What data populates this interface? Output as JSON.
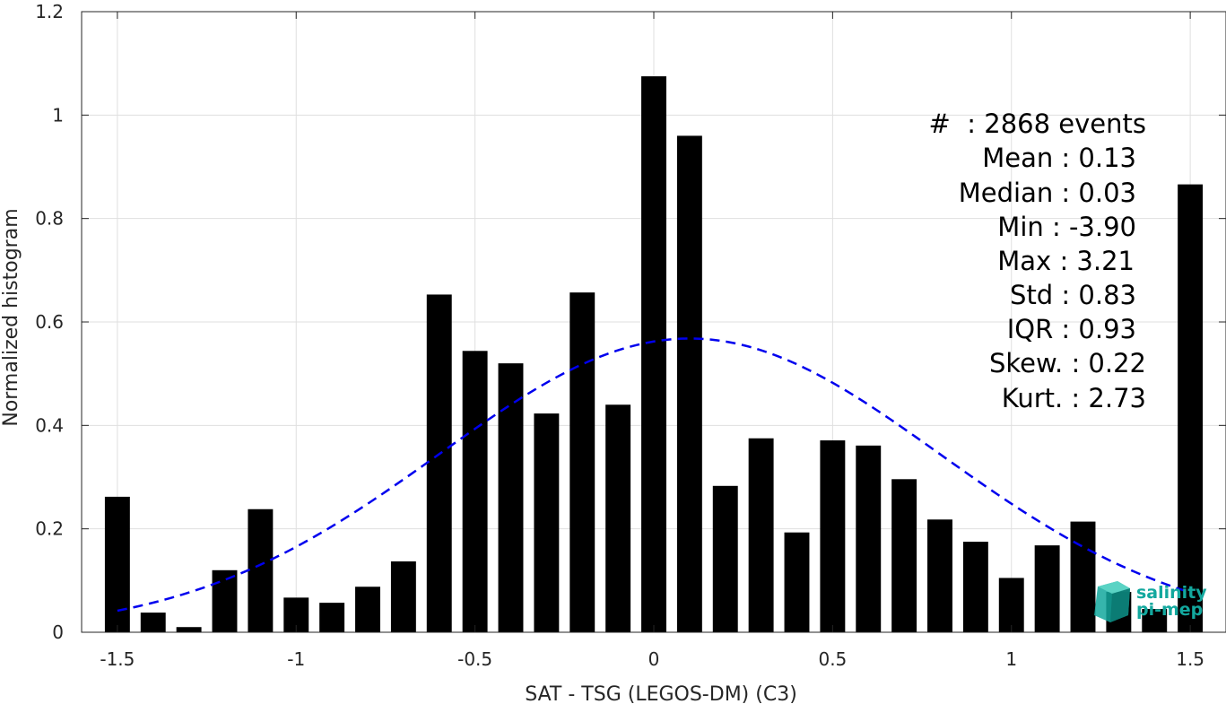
{
  "chart_data": {
    "type": "bar",
    "xlabel": "SAT - TSG (LEGOS-DM) (C3)",
    "ylabel": "Normalized histogram",
    "xlim": [
      -1.6,
      1.6
    ],
    "ylim": [
      0,
      1.2
    ],
    "grid": true,
    "x_ticks": [
      -1.5,
      -1,
      -0.5,
      0,
      0.5,
      1,
      1.5
    ],
    "x_tick_labels": [
      "-1.5",
      "-1",
      "-0.5",
      "0",
      "0.5",
      "1",
      "1.5"
    ],
    "y_ticks": [
      0,
      0.2,
      0.4,
      0.6,
      0.8,
      1,
      1.2
    ],
    "y_tick_labels": [
      "0",
      "0.2",
      "0.4",
      "0.6",
      "0.8",
      "1",
      "1.2"
    ],
    "bar_width": 0.07,
    "bar_color": "#000000",
    "bars": [
      {
        "x": -1.5,
        "y": 0.262
      },
      {
        "x": -1.4,
        "y": 0.038
      },
      {
        "x": -1.3,
        "y": 0.01
      },
      {
        "x": -1.2,
        "y": 0.12
      },
      {
        "x": -1.1,
        "y": 0.238
      },
      {
        "x": -1.0,
        "y": 0.067
      },
      {
        "x": -0.9,
        "y": 0.057
      },
      {
        "x": -0.8,
        "y": 0.088
      },
      {
        "x": -0.7,
        "y": 0.137
      },
      {
        "x": -0.6,
        "y": 0.653
      },
      {
        "x": -0.5,
        "y": 0.544
      },
      {
        "x": -0.4,
        "y": 0.52
      },
      {
        "x": -0.3,
        "y": 0.423
      },
      {
        "x": -0.2,
        "y": 0.657
      },
      {
        "x": -0.1,
        "y": 0.44
      },
      {
        "x": 0.0,
        "y": 1.075
      },
      {
        "x": 0.1,
        "y": 0.96
      },
      {
        "x": 0.2,
        "y": 0.283
      },
      {
        "x": 0.3,
        "y": 0.375
      },
      {
        "x": 0.4,
        "y": 0.193
      },
      {
        "x": 0.5,
        "y": 0.371
      },
      {
        "x": 0.6,
        "y": 0.361
      },
      {
        "x": 0.7,
        "y": 0.296
      },
      {
        "x": 0.8,
        "y": 0.218
      },
      {
        "x": 0.9,
        "y": 0.175
      },
      {
        "x": 1.0,
        "y": 0.105
      },
      {
        "x": 1.1,
        "y": 0.168
      },
      {
        "x": 1.2,
        "y": 0.214
      },
      {
        "x": 1.3,
        "y": 0.078
      },
      {
        "x": 1.4,
        "y": 0.045
      },
      {
        "x": 1.5,
        "y": 0.866
      }
    ],
    "fit_curve": {
      "type": "gaussian",
      "mean": 0.1,
      "std": 0.7,
      "peak": 0.568,
      "x_range": [
        -1.5,
        1.5
      ],
      "color": "#0000ee",
      "style": "dashed"
    },
    "stats": [
      "#  : 2868 events",
      "Mean : 0.13",
      "Median : 0.03",
      "Min : -3.90",
      "Max : 3.21",
      "Std : 0.83",
      "IQR : 0.93",
      "Skew. : 0.22",
      "Kurt. : 2.73"
    ]
  },
  "logo": {
    "line1": "salinity",
    "line2": "pi-mep",
    "color": "#13a89e"
  }
}
